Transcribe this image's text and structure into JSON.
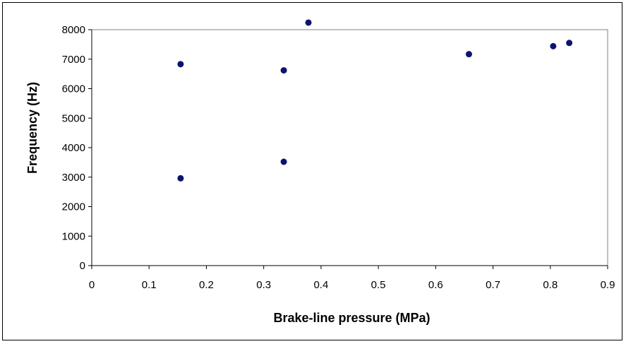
{
  "chart_data": {
    "type": "scatter",
    "title": "",
    "xlabel": "Brake-line pressure (MPa)",
    "ylabel": "Frequency (Hz)",
    "xlim": [
      0,
      0.9
    ],
    "ylim": [
      0,
      8000
    ],
    "x_ticks": [
      "0",
      "0.1",
      "0.2",
      "0.3",
      "0.4",
      "0.5",
      "0.6",
      "0.7",
      "0.8",
      "0.9"
    ],
    "y_ticks": [
      "0",
      "1000",
      "2000",
      "3000",
      "4000",
      "5000",
      "6000",
      "7000",
      "8000"
    ],
    "grid": false,
    "legend": "none",
    "marker_color": "#0a1470",
    "points": [
      {
        "x": 0.155,
        "y": 6830
      },
      {
        "x": 0.155,
        "y": 2960
      },
      {
        "x": 0.335,
        "y": 6620
      },
      {
        "x": 0.335,
        "y": 3520
      },
      {
        "x": 0.378,
        "y": 8240
      },
      {
        "x": 0.658,
        "y": 7170
      },
      {
        "x": 0.805,
        "y": 7440
      },
      {
        "x": 0.833,
        "y": 7550
      }
    ]
  }
}
